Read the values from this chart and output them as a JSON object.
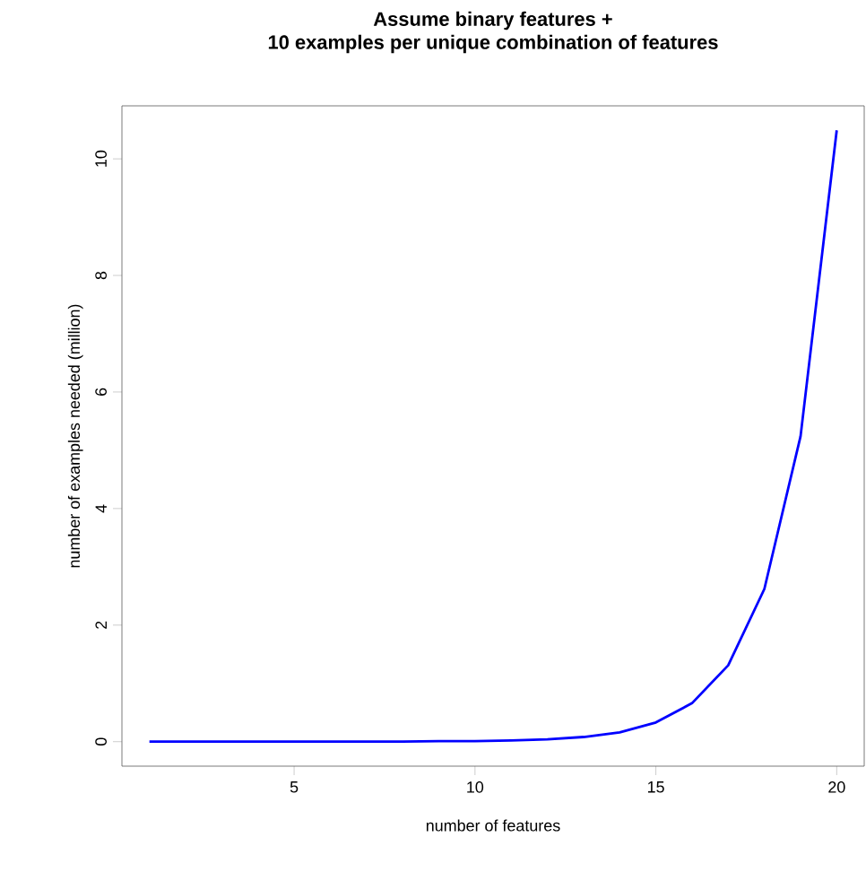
{
  "chart_data": {
    "type": "line",
    "title": "Assume binary features +",
    "subtitle": "10 examples per unique combination of features",
    "xlabel": "number of features",
    "ylabel": "number of examples needed (million)",
    "x": [
      1,
      2,
      3,
      4,
      5,
      6,
      7,
      8,
      9,
      10,
      11,
      12,
      13,
      14,
      15,
      16,
      17,
      18,
      19,
      20
    ],
    "series": [
      {
        "color": "#0000ff",
        "values": [
          0.0,
          0.0,
          0.0,
          0.0,
          0.0,
          0.0,
          0.0,
          0.0,
          0.01,
          0.01,
          0.02,
          0.04,
          0.08,
          0.16,
          0.33,
          0.66,
          1.31,
          2.62,
          5.24,
          10.49
        ]
      }
    ],
    "xlim": [
      0.24,
      20.76
    ],
    "ylim": [
      -0.42,
      10.91
    ],
    "xticks": [
      5,
      10,
      15,
      20
    ],
    "yticks": [
      0,
      2,
      4,
      6,
      8,
      10
    ],
    "grid": false,
    "marker": "none",
    "line_style": "solid"
  }
}
